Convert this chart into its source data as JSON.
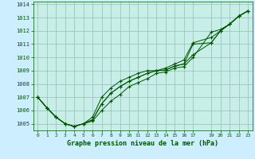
{
  "title": "Graphe pression niveau de la mer (hPa)",
  "background_color": "#cceeff",
  "plot_bg_color": "#c8eee8",
  "grid_color": "#99bbbb",
  "line_color": "#005500",
  "marker_color": "#005500",
  "xlim": [
    -0.5,
    23.5
  ],
  "ylim": [
    1004.5,
    1014.2
  ],
  "yticks": [
    1005,
    1006,
    1007,
    1008,
    1009,
    1010,
    1011,
    1012,
    1013,
    1014
  ],
  "x_positions": [
    0,
    1,
    2,
    3,
    4,
    5,
    6,
    7,
    8,
    9,
    10,
    11,
    12,
    13,
    14,
    15,
    16,
    17,
    19,
    20,
    21,
    22,
    23
  ],
  "xtick_labels": [
    "0",
    "1",
    "2",
    "3",
    "4",
    "5",
    "6",
    "7",
    "8",
    "9",
    "10",
    "11",
    "12",
    "13",
    "14",
    "15",
    "16",
    "17",
    "19",
    "20",
    "21",
    "22",
    "23"
  ],
  "series": [
    [
      1007.0,
      1006.2,
      1005.5,
      1005.0,
      1004.8,
      1005.0,
      1005.2,
      1006.0,
      1006.7,
      1007.2,
      1007.8,
      1008.1,
      1008.4,
      1008.8,
      1008.9,
      1009.2,
      1009.3,
      1010.0,
      1011.9,
      1012.1,
      1012.5,
      1013.1,
      1013.5
    ],
    [
      1007.0,
      1006.2,
      1005.5,
      1005.0,
      1004.8,
      1005.0,
      1005.3,
      1006.5,
      1007.3,
      1007.8,
      1008.2,
      1008.5,
      1008.8,
      1009.0,
      1009.05,
      1009.35,
      1009.5,
      1010.2,
      1011.1,
      1012.0,
      1012.5,
      1013.1,
      1013.5
    ],
    [
      1007.0,
      1006.2,
      1005.5,
      1005.0,
      1004.8,
      1005.0,
      1005.3,
      1006.5,
      1007.3,
      1007.8,
      1008.2,
      1008.5,
      1008.8,
      1009.0,
      1009.05,
      1009.35,
      1009.5,
      1011.0,
      1011.1,
      1012.0,
      1012.5,
      1013.1,
      1013.5
    ],
    [
      1007.0,
      1006.2,
      1005.5,
      1005.0,
      1004.8,
      1005.0,
      1005.5,
      1007.0,
      1007.7,
      1008.2,
      1008.5,
      1008.8,
      1009.0,
      1009.0,
      1009.2,
      1009.5,
      1009.8,
      1011.1,
      1011.5,
      1012.0,
      1012.5,
      1013.1,
      1013.5
    ]
  ]
}
